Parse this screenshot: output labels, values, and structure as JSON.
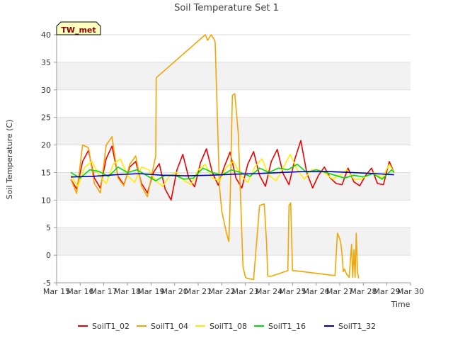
{
  "chart_data": {
    "type": "line",
    "title": "Soil Temperature Set 1",
    "xlabel": "Time",
    "ylabel": "Soil Temperature (C)",
    "badge": "TW_met",
    "xlim": [
      15,
      30
    ],
    "ylim": [
      -5,
      40
    ],
    "x_ticks": [
      15,
      16,
      17,
      18,
      19,
      20,
      21,
      22,
      23,
      24,
      25,
      26,
      27,
      28,
      29,
      30
    ],
    "x_tick_labels": [
      "Mar 15",
      "Mar 16",
      "Mar 17",
      "Mar 18",
      "Mar 19",
      "Mar 20",
      "Mar 21",
      "Mar 22",
      "Mar 23",
      "Mar 24",
      "Mar 25",
      "Mar 26",
      "Mar 27",
      "Mar 28",
      "Mar 29",
      "Mar 30"
    ],
    "y_ticks": [
      -5,
      0,
      5,
      10,
      15,
      20,
      25,
      30,
      35,
      40
    ],
    "y_tick_labels": [
      "-5",
      "0",
      "5",
      "10",
      "15",
      "20",
      "25",
      "30",
      "35",
      "40"
    ],
    "grid": "horizontal bands",
    "legend_position": "bottom",
    "series": [
      {
        "name": "SoilT1_02",
        "color": "#ee0000",
        "x": [
          15.6,
          15.85,
          16.1,
          16.35,
          16.6,
          16.85,
          17.1,
          17.35,
          17.6,
          17.85,
          18.1,
          18.35,
          18.6,
          18.85,
          19.1,
          19.35,
          19.6,
          19.85,
          20.1,
          20.35,
          20.6,
          20.85,
          21.1,
          21.35,
          21.6,
          21.85,
          22.1,
          22.35,
          22.6,
          22.85,
          23.1,
          23.35,
          23.6,
          23.85,
          24.1,
          24.35,
          24.6,
          24.85,
          25.1,
          25.35,
          25.6,
          25.85,
          26.1,
          26.35,
          26.6,
          26.85,
          27.1,
          27.35,
          27.6,
          27.85,
          28.1,
          28.35,
          28.6,
          28.85,
          29.1,
          29.3
        ],
        "y": [
          13.8,
          12.0,
          17.0,
          19.0,
          14.0,
          12.2,
          17.5,
          19.8,
          14.3,
          12.8,
          16.0,
          17.0,
          13.0,
          11.3,
          15.0,
          16.6,
          12.0,
          10.0,
          15.5,
          18.3,
          14.0,
          12.4,
          16.8,
          19.3,
          15.0,
          12.7,
          16.0,
          18.7,
          14.0,
          12.2,
          16.5,
          18.8,
          14.5,
          12.5,
          17.0,
          19.2,
          14.8,
          12.8,
          17.5,
          20.8,
          15.0,
          12.2,
          14.5,
          16.0,
          14.0,
          13.0,
          12.8,
          15.8,
          13.3,
          12.6,
          14.5,
          15.8,
          13.0,
          12.8,
          17.0,
          15.0
        ]
      },
      {
        "name": "SoilT1_04",
        "color": "#f5a500",
        "x": [
          15.6,
          15.85,
          16.1,
          16.35,
          16.6,
          16.85,
          17.1,
          17.35,
          17.6,
          17.85,
          18.1,
          18.35,
          18.6,
          18.85,
          19.1,
          19.2,
          19.22,
          21.3,
          21.4,
          21.55,
          21.7,
          21.72,
          21.9,
          22.0,
          22.2,
          22.3,
          22.35,
          22.45,
          22.55,
          22.7,
          22.9,
          23.0,
          23.08,
          23.2,
          23.35,
          23.6,
          23.8,
          23.9,
          23.95,
          24.1,
          24.8,
          24.85,
          24.92,
          25.0,
          25.1,
          26.8,
          26.9,
          27.0,
          27.05,
          27.1,
          27.15,
          27.2,
          27.3,
          27.4,
          27.5,
          27.55,
          27.6,
          27.65,
          27.7,
          27.75,
          27.8
        ],
        "y": [
          13.8,
          11.2,
          20.0,
          19.5,
          13.0,
          11.3,
          20.0,
          21.5,
          14.0,
          12.6,
          16.5,
          18.0,
          12.5,
          10.6,
          16.0,
          18.0,
          32.2,
          40.0,
          39.0,
          40.0,
          39.0,
          38.5,
          12.5,
          8.0,
          4.0,
          2.5,
          9.0,
          29.0,
          29.3,
          22.0,
          -2.0,
          -4.0,
          -4.2,
          -4.3,
          -4.4,
          9.0,
          9.3,
          2.0,
          -3.8,
          -3.8,
          -2.8,
          9.0,
          9.5,
          -2.8,
          -2.8,
          -3.7,
          4.0,
          3.0,
          2.0,
          0.0,
          -3.0,
          -2.5,
          -3.5,
          -4.0,
          2.0,
          -4.0,
          1.0,
          -4.0,
          4.0,
          -3.0,
          -4.2
        ]
      },
      {
        "name": "SoilT1_08",
        "color": "#ffee00",
        "x": [
          15.6,
          15.9,
          16.2,
          16.5,
          16.8,
          17.1,
          17.4,
          17.7,
          18.0,
          18.3,
          18.6,
          18.9,
          19.2,
          19.5,
          19.8,
          20.1,
          20.4,
          20.7,
          21.0,
          21.3,
          21.6,
          21.9,
          22.2,
          22.5,
          22.8,
          23.1,
          23.4,
          23.7,
          24.0,
          24.3,
          24.6,
          24.9,
          25.2,
          25.5,
          25.8,
          26.1,
          26.4,
          26.7,
          27.0,
          27.3,
          27.6,
          27.9,
          28.2,
          28.5,
          28.8,
          29.1,
          29.3
        ],
        "y": [
          14.5,
          12.5,
          16.0,
          17.0,
          14.5,
          13.0,
          16.5,
          17.5,
          14.5,
          13.2,
          16.0,
          15.5,
          13.5,
          12.5,
          14.5,
          15.0,
          13.5,
          12.8,
          15.5,
          16.5,
          14.0,
          13.5,
          16.0,
          17.0,
          14.5,
          13.2,
          16.0,
          17.5,
          14.5,
          13.5,
          15.8,
          18.3,
          15.5,
          13.8,
          15.5,
          15.5,
          14.8,
          13.8,
          14.5,
          15.5,
          13.8,
          13.8,
          14.5,
          15.0,
          14.0,
          16.5,
          15.0
        ]
      },
      {
        "name": "SoilT1_16",
        "color": "#00dd00",
        "x": [
          15.6,
          16.0,
          16.4,
          16.8,
          17.2,
          17.6,
          18.0,
          18.4,
          18.8,
          19.2,
          19.6,
          20.0,
          20.4,
          20.8,
          21.2,
          21.6,
          22.0,
          22.4,
          22.8,
          23.2,
          23.6,
          24.0,
          24.4,
          24.8,
          25.2,
          25.6,
          26.0,
          26.4,
          26.8,
          27.2,
          27.6,
          28.0,
          28.4,
          28.8,
          29.2,
          29.3
        ],
        "y": [
          15.0,
          14.0,
          15.5,
          15.2,
          14.3,
          16.0,
          15.0,
          15.5,
          14.5,
          13.5,
          14.5,
          14.5,
          13.8,
          14.0,
          15.8,
          15.0,
          14.5,
          15.5,
          15.0,
          14.3,
          15.8,
          15.0,
          15.8,
          15.5,
          16.5,
          15.0,
          15.5,
          15.0,
          14.5,
          14.0,
          14.5,
          14.2,
          14.8,
          13.8,
          15.5,
          15.0
        ]
      },
      {
        "name": "SoilT1_32",
        "color": "#0000bb",
        "x": [
          15.6,
          16.5,
          17.5,
          18.5,
          19.5,
          20.5,
          21.5,
          22.5,
          23.5,
          24.5,
          25.5,
          26.5,
          27.5,
          28.5,
          29.3
        ],
        "y": [
          14.2,
          14.3,
          14.6,
          14.8,
          14.5,
          14.4,
          14.5,
          14.7,
          14.8,
          15.0,
          15.2,
          15.2,
          15.0,
          14.8,
          14.6
        ]
      }
    ]
  }
}
